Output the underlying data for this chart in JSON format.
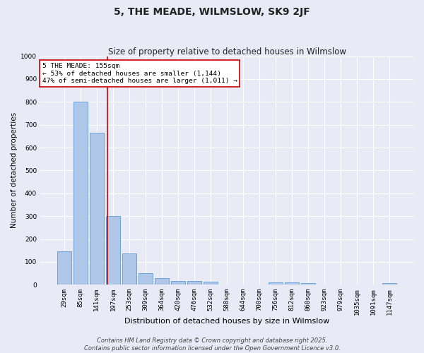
{
  "title": "5, THE MEADE, WILMSLOW, SK9 2JF",
  "subtitle": "Size of property relative to detached houses in Wilmslow",
  "xlabel": "Distribution of detached houses by size in Wilmslow",
  "ylabel": "Number of detached properties",
  "categories": [
    "29sqm",
    "85sqm",
    "141sqm",
    "197sqm",
    "253sqm",
    "309sqm",
    "364sqm",
    "420sqm",
    "476sqm",
    "532sqm",
    "588sqm",
    "644sqm",
    "700sqm",
    "756sqm",
    "812sqm",
    "868sqm",
    "923sqm",
    "979sqm",
    "1035sqm",
    "1091sqm",
    "1147sqm"
  ],
  "values": [
    145,
    800,
    665,
    300,
    137,
    52,
    28,
    18,
    18,
    12,
    0,
    0,
    0,
    10,
    10,
    6,
    0,
    0,
    0,
    0,
    6
  ],
  "bar_color": "#aec6e8",
  "bar_edge_color": "#5b9bd5",
  "vline_x": 2.65,
  "vline_color": "#cc0000",
  "annotation_text": "5 THE MEADE: 155sqm\n← 53% of detached houses are smaller (1,144)\n47% of semi-detached houses are larger (1,011) →",
  "annotation_box_color": "#ffffff",
  "annotation_box_edge_color": "#cc0000",
  "ylim": [
    0,
    1000
  ],
  "yticks": [
    0,
    100,
    200,
    300,
    400,
    500,
    600,
    700,
    800,
    900,
    1000
  ],
  "background_color": "#e8eaf6",
  "grid_color": "#ffffff",
  "footer_line1": "Contains HM Land Registry data © Crown copyright and database right 2025.",
  "footer_line2": "Contains public sector information licensed under the Open Government Licence v3.0.",
  "title_fontsize": 10,
  "subtitle_fontsize": 8.5,
  "xlabel_fontsize": 8,
  "ylabel_fontsize": 7.5,
  "tick_fontsize": 6.5,
  "footer_fontsize": 6
}
